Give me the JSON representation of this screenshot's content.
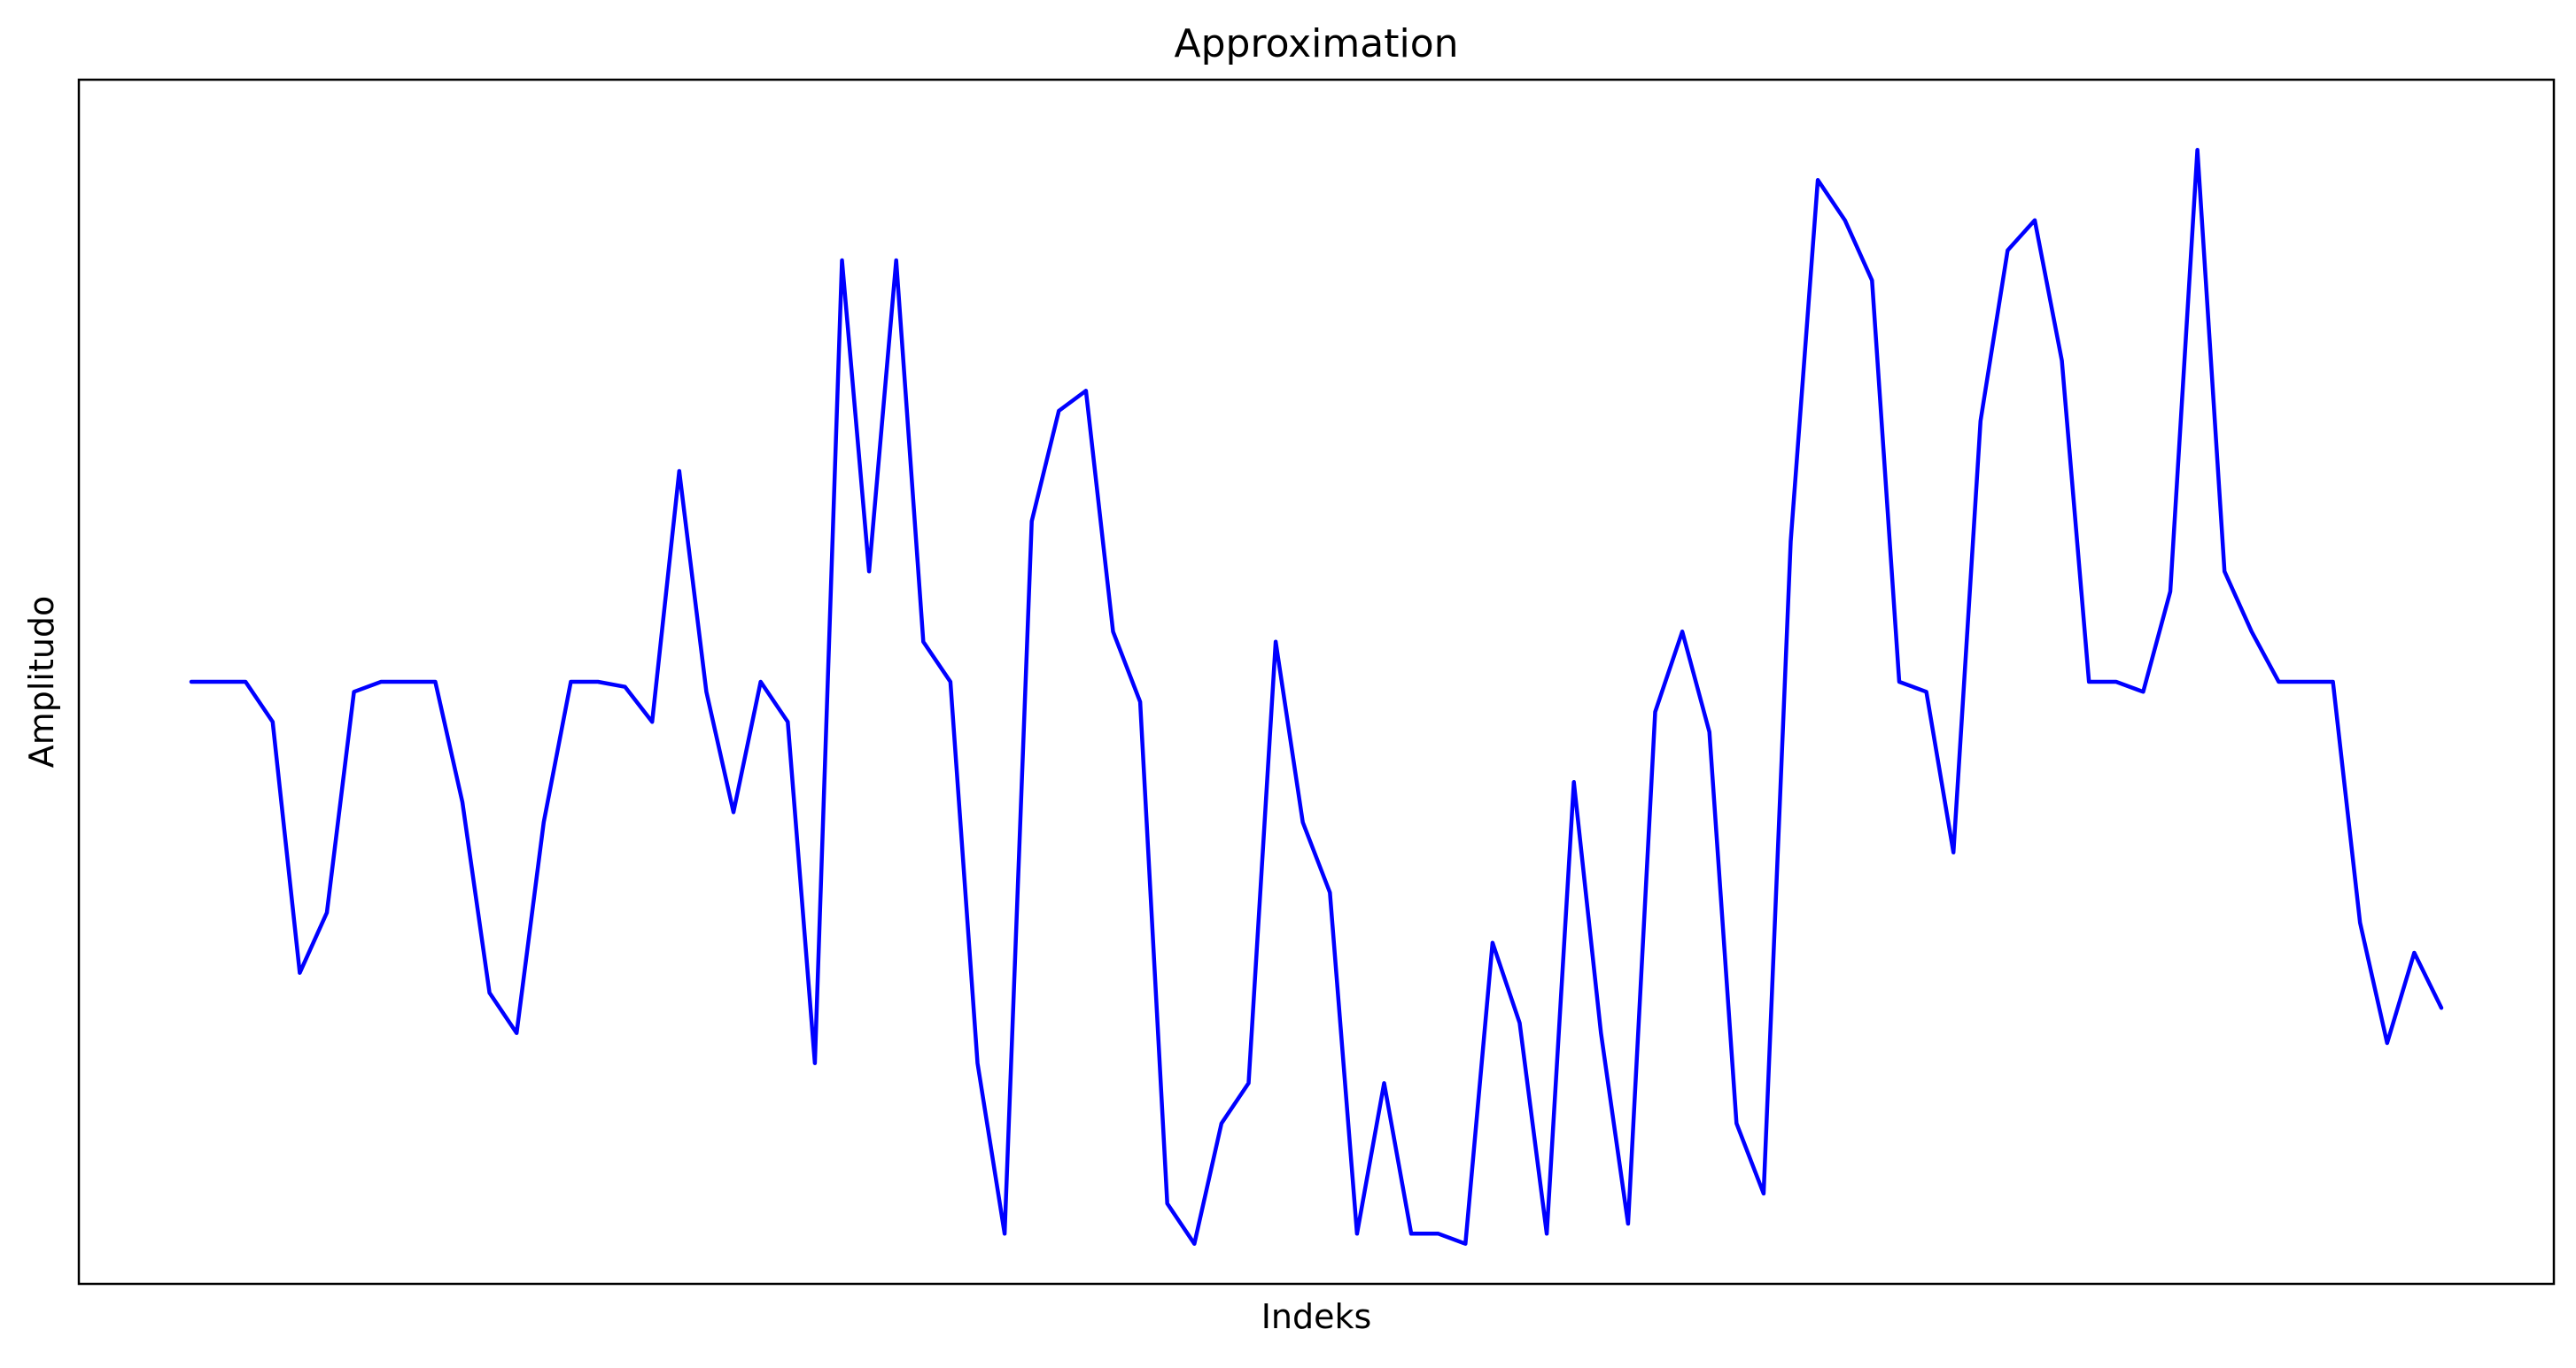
{
  "chart_data": {
    "type": "line",
    "title": "Approximation",
    "xlabel": "Indeks",
    "ylabel": "Amplitudo",
    "x_ticks_visible": false,
    "y_ticks_visible": false,
    "grid": false,
    "legend": "none",
    "xlim": [
      -4.15,
      87.15
    ],
    "ylim": [
      -0.6,
      0.6
    ],
    "series": [
      {
        "color": "#0000ff",
        "values": [
          0.0,
          0.0,
          0.0,
          -0.04,
          -0.29,
          -0.23,
          -0.01,
          0.0,
          0.0,
          0.0,
          -0.12,
          -0.31,
          -0.35,
          -0.14,
          0.0,
          0.0,
          -0.005,
          -0.04,
          0.21,
          -0.01,
          -0.13,
          0.0,
          -0.04,
          -0.38,
          0.42,
          0.11,
          0.42,
          0.04,
          0.0,
          -0.38,
          -0.55,
          0.16,
          0.27,
          0.29,
          0.05,
          -0.02,
          -0.52,
          -0.56,
          -0.44,
          -0.4,
          0.04,
          -0.14,
          -0.21,
          -0.55,
          -0.4,
          -0.55,
          -0.55,
          -0.56,
          -0.26,
          -0.34,
          -0.55,
          -0.1,
          -0.35,
          -0.54,
          -0.03,
          0.05,
          -0.05,
          -0.44,
          -0.51,
          0.14,
          0.5,
          0.46,
          0.4,
          0.0,
          -0.01,
          -0.17,
          0.26,
          0.43,
          0.46,
          0.32,
          0.0,
          0.0,
          -0.01,
          0.09,
          0.53,
          0.11,
          0.05,
          0.0,
          0.0,
          0.0,
          -0.24,
          -0.36,
          -0.27,
          -0.325
        ]
      }
    ]
  }
}
